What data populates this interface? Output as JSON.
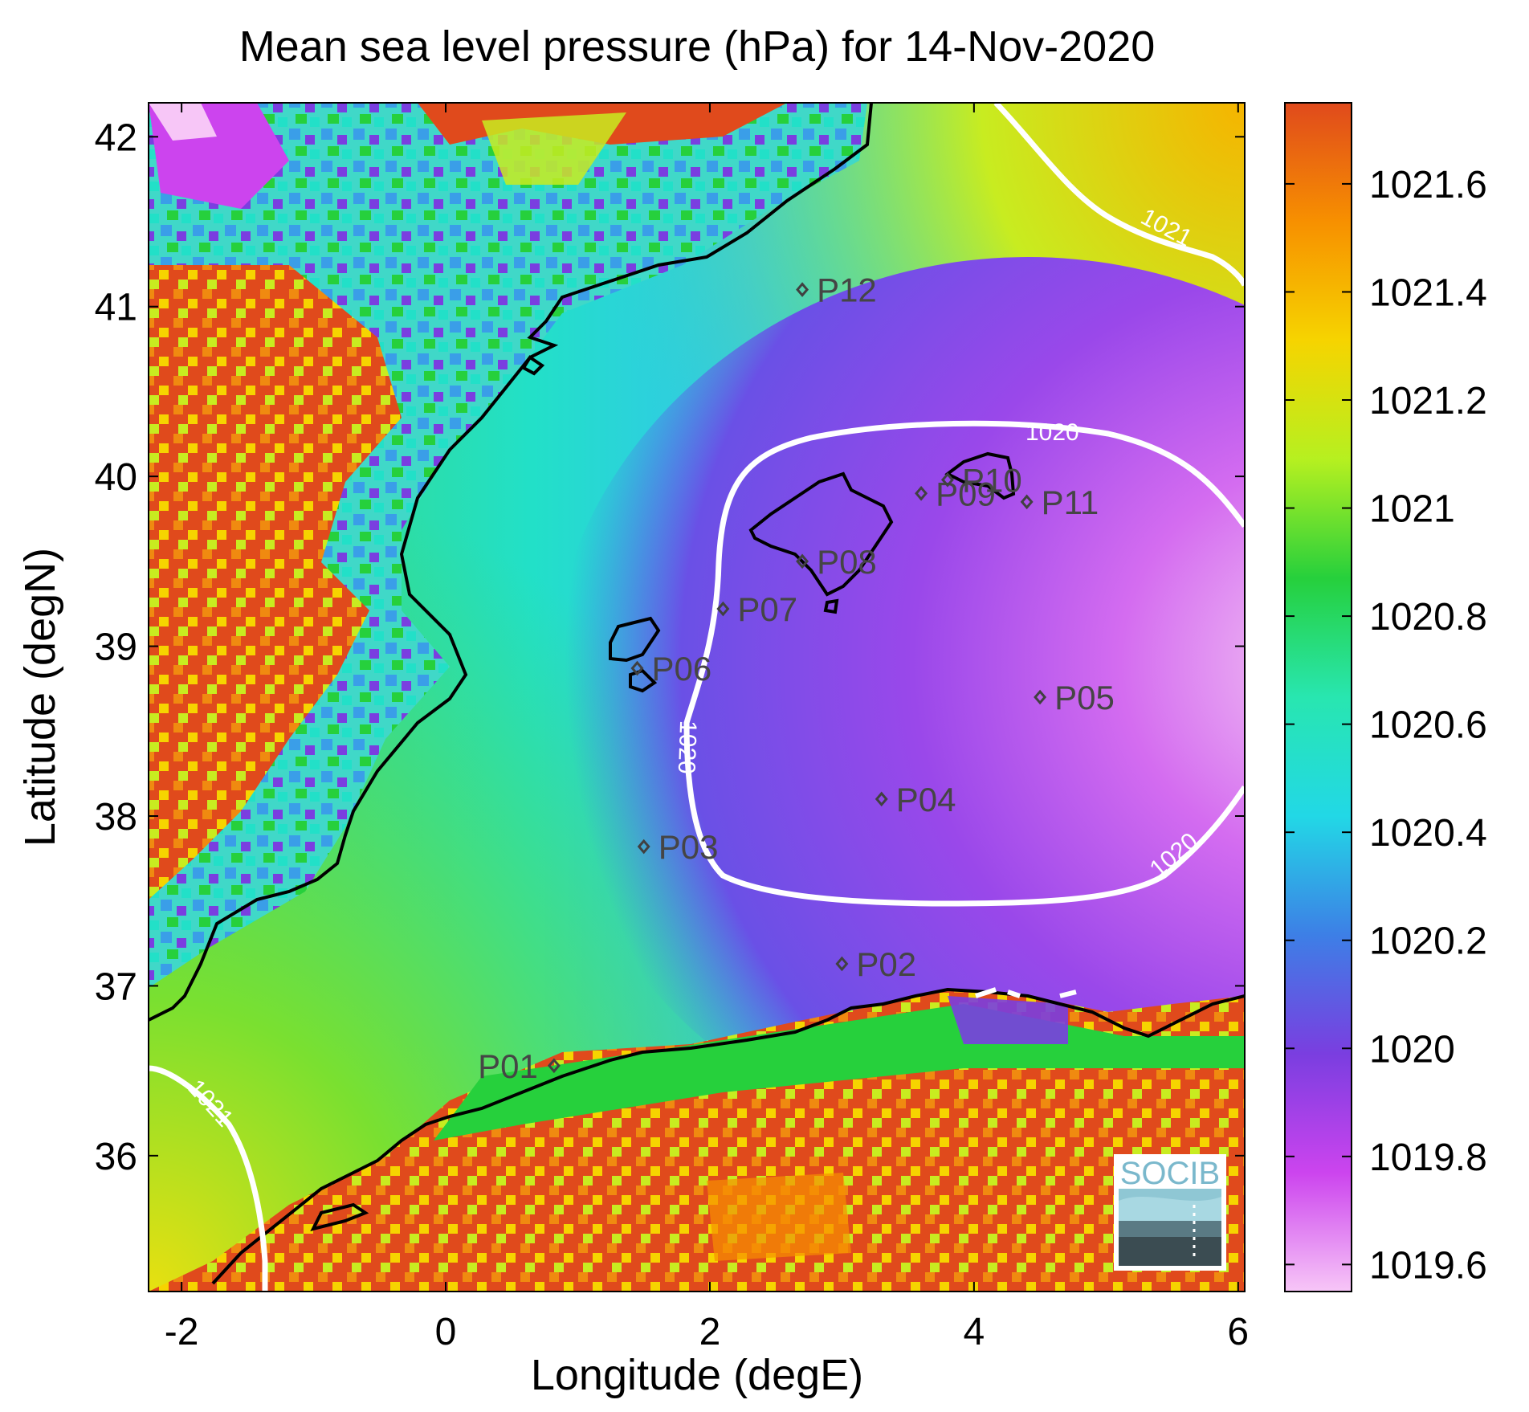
{
  "title": "Mean sea level pressure (hPa) for 14-Nov-2020",
  "xlabel": "Longitude (degE)",
  "ylabel": "Latitude (degN)",
  "x_ticks": [
    "-2",
    "0",
    "2",
    "4",
    "6"
  ],
  "y_ticks": [
    "42",
    "41",
    "40",
    "39",
    "38",
    "37",
    "36"
  ],
  "colorbar": {
    "ticks": [
      "1021.6",
      "1021.4",
      "1021.2",
      "1021",
      "1020.8",
      "1020.6",
      "1020.4",
      "1020.2",
      "1020",
      "1019.8",
      "1019.6"
    ],
    "colors": [
      "#f7c6f7",
      "#cc44ee",
      "#7a3ee0",
      "#3d7fe6",
      "#22d8e6",
      "#28e6b0",
      "#26d03c",
      "#b6f020",
      "#f6d400",
      "#f79000",
      "#e04a1c"
    ]
  },
  "logo_text": "SOCIB",
  "chart_data": {
    "type": "heatmap",
    "title": "Mean sea level pressure (hPa) for 14-Nov-2020",
    "xlabel": "Longitude (degE)",
    "ylabel": "Latitude (degN)",
    "xlim": [
      -2.25,
      6.05
    ],
    "ylim": [
      35.2,
      42.2
    ],
    "color_range": [
      1019.55,
      1021.75
    ],
    "contours": [
      {
        "level": "1020",
        "label_count": 3
      },
      {
        "level": "1021",
        "label_count": 2
      }
    ],
    "stations": [
      {
        "name": "P01",
        "lon": 0.82,
        "lat": 36.53
      },
      {
        "name": "P02",
        "lon": 3.0,
        "lat": 37.13
      },
      {
        "name": "P03",
        "lon": 1.5,
        "lat": 37.82
      },
      {
        "name": "P04",
        "lon": 3.3,
        "lat": 38.1
      },
      {
        "name": "P05",
        "lon": 4.5,
        "lat": 38.7
      },
      {
        "name": "P06",
        "lon": 1.45,
        "lat": 38.87
      },
      {
        "name": "P07",
        "lon": 2.1,
        "lat": 39.22
      },
      {
        "name": "P08",
        "lon": 2.7,
        "lat": 39.5
      },
      {
        "name": "P09",
        "lon": 3.6,
        "lat": 39.9
      },
      {
        "name": "P10",
        "lon": 3.8,
        "lat": 39.98
      },
      {
        "name": "P11",
        "lon": 4.4,
        "lat": 39.85
      },
      {
        "name": "P12",
        "lon": 2.7,
        "lat": 41.1
      }
    ]
  }
}
